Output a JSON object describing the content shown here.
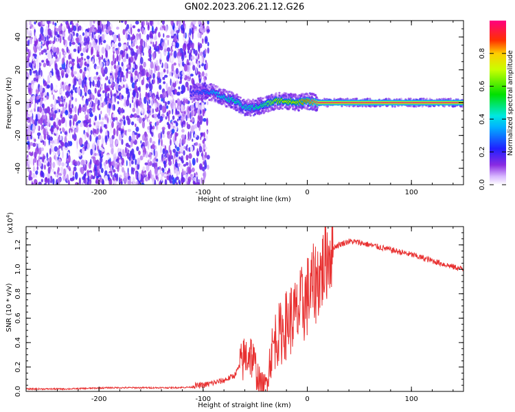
{
  "figure_title": "GN02.2023.206.21.12.G26",
  "chart_data": [
    {
      "type": "heatmap",
      "title": "GN02.2023.206.21.12.G26",
      "xlabel": "Height of straight line (km)",
      "ylabel": "Frequency (Hz)",
      "xlim": [
        -270,
        150
      ],
      "ylim": [
        -50,
        50
      ],
      "x_ticks": [
        -200,
        -100,
        0,
        100
      ],
      "x_tick_labels": [
        "-200",
        "-100",
        "0",
        "100"
      ],
      "y_ticks": [
        -40,
        -20,
        0,
        20,
        40
      ],
      "y_tick_labels": [
        "-40",
        "-20",
        "0",
        "20",
        "40"
      ],
      "colorbar": {
        "label": "Normalized spectral amplitude",
        "range": [
          0,
          1
        ],
        "ticks": [
          0.0,
          0.2,
          0.4,
          0.6,
          0.8
        ],
        "tick_labels": [
          "0.0",
          "0.2",
          "0.4",
          "0.6",
          "0.8"
        ],
        "colormap": "white-purple-blue-cyan-green-yellow-red-magenta"
      },
      "ridge": {
        "description_x": [
          -115,
          -100,
          -90,
          -80,
          -70,
          -60,
          -50,
          -40,
          -30,
          -20,
          -10,
          0,
          10,
          50,
          100,
          150
        ],
        "frequency": [
          5,
          7,
          6,
          3,
          1,
          -3,
          -3,
          -1,
          1,
          1,
          0,
          1,
          0,
          0,
          0,
          0
        ],
        "amplitude": [
          0.2,
          0.3,
          0.4,
          0.45,
          0.5,
          0.45,
          0.5,
          0.6,
          0.8,
          0.8,
          0.8,
          0.9,
          1.0,
          1.0,
          1.0,
          1.0
        ]
      },
      "noise_region_xlim": [
        -270,
        -95
      ],
      "grid": false
    },
    {
      "type": "line",
      "xlabel": "Height of straight line (km)",
      "ylabel": "SNR (10 * v/v)",
      "scale_label": "(x10",
      "scale_exponent": "4",
      "scale_suffix": ")",
      "xlim": [
        -270,
        150
      ],
      "ylim": [
        0,
        1.35
      ],
      "x_ticks": [
        -200,
        -100,
        0,
        100
      ],
      "x_tick_labels": [
        "-200",
        "-100",
        "0",
        "100"
      ],
      "y_ticks": [
        0.0,
        0.2,
        0.4,
        0.6,
        0.8,
        1.0,
        1.2
      ],
      "y_tick_labels": [
        "0.0",
        "0.2",
        "0.4",
        "0.6",
        "0.8",
        "1.0",
        "1.2"
      ],
      "series": [
        {
          "color": "#e83030",
          "x": [
            -270,
            -250,
            -230,
            -210,
            -190,
            -170,
            -150,
            -130,
            -110,
            -100,
            -90,
            -80,
            -70,
            -60,
            -55,
            -50,
            -45,
            -40,
            -35,
            -30,
            -25,
            -20,
            -15,
            -10,
            -5,
            0,
            5,
            10,
            15,
            20,
            25,
            30,
            40,
            50,
            60,
            80,
            100,
            120,
            140,
            150
          ],
          "y": [
            0.02,
            0.02,
            0.02,
            0.025,
            0.03,
            0.03,
            0.03,
            0.03,
            0.035,
            0.04,
            0.06,
            0.08,
            0.12,
            0.28,
            0.32,
            0.2,
            0.05,
            0.04,
            0.3,
            0.45,
            0.48,
            0.55,
            0.6,
            0.62,
            0.7,
            0.78,
            0.85,
            0.92,
            1.0,
            1.12,
            1.18,
            1.2,
            1.23,
            1.22,
            1.2,
            1.16,
            1.12,
            1.07,
            1.02,
            1.0
          ]
        }
      ],
      "grid": false
    }
  ]
}
